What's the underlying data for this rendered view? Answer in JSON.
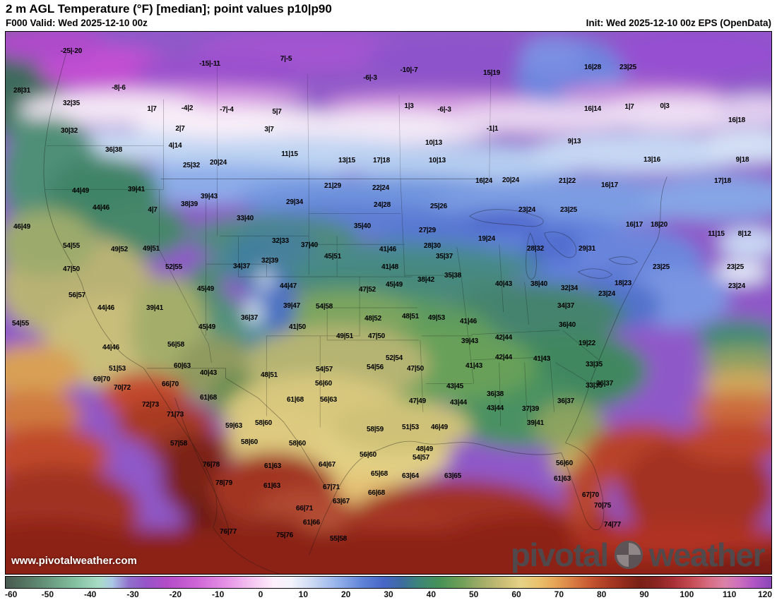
{
  "header": {
    "title": "2 m AGL Temperature (°F) [median]; point values p10|p90",
    "valid": "F000 Valid: Wed 2025-12-10 00z",
    "init": "Init: Wed 2025-12-10 00z EPS (OpenData)"
  },
  "watermark": {
    "url": "www.pivotalweather.com",
    "brand_first": "pivotal",
    "brand_second": "weather"
  },
  "colorbar": {
    "min": -60,
    "max": 120,
    "tick_labels": [
      -60,
      -50,
      -40,
      -30,
      -20,
      -10,
      0,
      10,
      20,
      30,
      40,
      50,
      60,
      70,
      80,
      90,
      100,
      110,
      120
    ],
    "stops": [
      [
        -60,
        "#47584e"
      ],
      [
        -52,
        "#5f8a72"
      ],
      [
        -44,
        "#82bf9e"
      ],
      [
        -38,
        "#a8dcc6"
      ],
      [
        -35,
        "#abc8e6"
      ],
      [
        -31,
        "#9170cc"
      ],
      [
        -27,
        "#9654c8"
      ],
      [
        -22,
        "#b44cc8"
      ],
      [
        -15,
        "#cf66d6"
      ],
      [
        -8,
        "#e693e6"
      ],
      [
        -2,
        "#f5c6f2"
      ],
      [
        3,
        "#fdeffb"
      ],
      [
        7,
        "#f3f3fb"
      ],
      [
        12,
        "#ccdaf4"
      ],
      [
        18,
        "#94b2ea"
      ],
      [
        24,
        "#5f82d8"
      ],
      [
        29,
        "#4766c6"
      ],
      [
        33,
        "#3d6ba0"
      ],
      [
        37,
        "#3d8579"
      ],
      [
        42,
        "#479258"
      ],
      [
        47,
        "#6f9f58"
      ],
      [
        52,
        "#a3ad68"
      ],
      [
        57,
        "#ccbe76"
      ],
      [
        61,
        "#e5d287"
      ],
      [
        65,
        "#e9c36e"
      ],
      [
        69,
        "#e5a657"
      ],
      [
        73,
        "#da8045"
      ],
      [
        77,
        "#c85a33"
      ],
      [
        81,
        "#af3f26"
      ],
      [
        85,
        "#952c1d"
      ],
      [
        89,
        "#7a2015"
      ],
      [
        93,
        "#8a2423"
      ],
      [
        97,
        "#a93136"
      ],
      [
        101,
        "#c44a52"
      ],
      [
        105,
        "#d66a7e"
      ],
      [
        109,
        "#db82a8"
      ],
      [
        112,
        "#cf72bc"
      ],
      [
        116,
        "#b055c4"
      ],
      [
        120,
        "#8a46b8"
      ]
    ]
  },
  "map": {
    "units": "°F",
    "point_format": "p10|p90",
    "point_values": [
      [
        100,
        74,
        "-25|-20"
      ],
      [
        296,
        92,
        "-15|-11"
      ],
      [
        404,
        85,
        "7|-5"
      ],
      [
        578,
        101,
        "-10|-7"
      ],
      [
        695,
        105,
        "15|19"
      ],
      [
        838,
        97,
        "16|28"
      ],
      [
        888,
        97,
        "23|25"
      ],
      [
        30,
        130,
        "28|31"
      ],
      [
        167,
        126,
        "-8|-6"
      ],
      [
        523,
        112,
        "-6|-3"
      ],
      [
        100,
        148,
        "32|35"
      ],
      [
        214,
        156,
        "1|7"
      ],
      [
        264,
        155,
        "-4|2"
      ],
      [
        320,
        157,
        "-7|-4"
      ],
      [
        391,
        160,
        "5|7"
      ],
      [
        578,
        152,
        "1|3"
      ],
      [
        628,
        157,
        "-6|-3"
      ],
      [
        838,
        156,
        "16|14"
      ],
      [
        890,
        153,
        "1|7"
      ],
      [
        940,
        152,
        "0|3"
      ],
      [
        97,
        187,
        "30|32"
      ],
      [
        254,
        184,
        "2|7"
      ],
      [
        380,
        185,
        "3|7"
      ],
      [
        696,
        184,
        "-1|1"
      ],
      [
        1042,
        172,
        "16|18"
      ],
      [
        160,
        214,
        "36|38"
      ],
      [
        247,
        208,
        "4|14"
      ],
      [
        409,
        220,
        "11|15"
      ],
      [
        613,
        204,
        "10|13"
      ],
      [
        812,
        202,
        "9|13"
      ],
      [
        490,
        229,
        "13|15"
      ],
      [
        539,
        229,
        "17|18"
      ],
      [
        618,
        229,
        "10|13"
      ],
      [
        922,
        228,
        "13|16"
      ],
      [
        1050,
        228,
        "9|18"
      ],
      [
        270,
        236,
        "25|32"
      ],
      [
        308,
        232,
        "20|24"
      ],
      [
        113,
        272,
        "44|49"
      ],
      [
        192,
        270,
        "39|41"
      ],
      [
        295,
        280,
        "39|43"
      ],
      [
        267,
        291,
        "38|39"
      ],
      [
        470,
        265,
        "21|29"
      ],
      [
        538,
        268,
        "22|24"
      ],
      [
        684,
        258,
        "16|24"
      ],
      [
        722,
        257,
        "20|24"
      ],
      [
        802,
        258,
        "21|22"
      ],
      [
        862,
        264,
        "16|17"
      ],
      [
        1022,
        258,
        "17|18"
      ],
      [
        142,
        296,
        "44|46"
      ],
      [
        215,
        299,
        "4|7"
      ],
      [
        346,
        311,
        "33|40"
      ],
      [
        416,
        288,
        "29|34"
      ],
      [
        540,
        292,
        "24|28"
      ],
      [
        620,
        294,
        "25|26"
      ],
      [
        745,
        299,
        "23|24"
      ],
      [
        804,
        299,
        "23|25"
      ],
      [
        30,
        323,
        "46|49"
      ],
      [
        512,
        322,
        "35|40"
      ],
      [
        604,
        328,
        "27|29"
      ],
      [
        688,
        340,
        "19|24"
      ],
      [
        897,
        320,
        "16|17"
      ],
      [
        932,
        320,
        "18|20"
      ],
      [
        1013,
        333,
        "11|15"
      ],
      [
        1053,
        333,
        "8|12"
      ],
      [
        100,
        350,
        "54|55"
      ],
      [
        168,
        355,
        "49|52"
      ],
      [
        213,
        354,
        "49|51"
      ],
      [
        396,
        343,
        "32|33"
      ],
      [
        437,
        349,
        "37|40"
      ],
      [
        548,
        355,
        "41|46"
      ],
      [
        611,
        350,
        "28|30"
      ],
      [
        757,
        354,
        "28|32"
      ],
      [
        830,
        354,
        "29|31"
      ],
      [
        935,
        380,
        "23|25"
      ],
      [
        100,
        383,
        "47|50"
      ],
      [
        245,
        380,
        "52|55"
      ],
      [
        341,
        379,
        "34|37"
      ],
      [
        381,
        371,
        "32|39"
      ],
      [
        470,
        365,
        "45|51"
      ],
      [
        551,
        380,
        "41|48"
      ],
      [
        628,
        365,
        "35|37"
      ],
      [
        1040,
        380,
        "23|25"
      ],
      [
        1042,
        407,
        "23|24"
      ],
      [
        108,
        420,
        "56|57"
      ],
      [
        149,
        438,
        "44|46"
      ],
      [
        218,
        438,
        "39|41"
      ],
      [
        290,
        411,
        "45|49"
      ],
      [
        407,
        407,
        "44|47"
      ],
      [
        412,
        435,
        "39|47"
      ],
      [
        458,
        436,
        "54|58"
      ],
      [
        519,
        412,
        "47|52"
      ],
      [
        557,
        405,
        "45|49"
      ],
      [
        602,
        398,
        "38|42"
      ],
      [
        640,
        392,
        "35|38"
      ],
      [
        712,
        404,
        "40|43"
      ],
      [
        762,
        404,
        "38|40"
      ],
      [
        805,
        410,
        "32|34"
      ],
      [
        800,
        435,
        "34|37"
      ],
      [
        858,
        418,
        "23|24"
      ],
      [
        881,
        403,
        "18|23"
      ],
      [
        28,
        460,
        "54|55"
      ],
      [
        156,
        494,
        "44|46"
      ],
      [
        248,
        490,
        "56|58"
      ],
      [
        292,
        465,
        "45|49"
      ],
      [
        352,
        452,
        "36|37"
      ],
      [
        420,
        465,
        "41|50"
      ],
      [
        487,
        478,
        "49|51"
      ],
      [
        532,
        478,
        "47|50"
      ],
      [
        527,
        453,
        "48|52"
      ],
      [
        580,
        450,
        "48|51"
      ],
      [
        617,
        452,
        "49|53"
      ],
      [
        662,
        457,
        "41|46"
      ],
      [
        664,
        485,
        "39|43"
      ],
      [
        712,
        480,
        "42|44"
      ],
      [
        766,
        510,
        "41|43"
      ],
      [
        802,
        462,
        "36|40"
      ],
      [
        830,
        488,
        "19|22"
      ],
      [
        840,
        518,
        "33|35"
      ],
      [
        165,
        524,
        "51|53"
      ],
      [
        143,
        539,
        "69|70"
      ],
      [
        172,
        551,
        "70|72"
      ],
      [
        240,
        546,
        "66|70"
      ],
      [
        257,
        520,
        "60|63"
      ],
      [
        294,
        530,
        "40|43"
      ],
      [
        380,
        533,
        "48|51"
      ],
      [
        458,
        525,
        "54|57"
      ],
      [
        530,
        522,
        "54|56"
      ],
      [
        557,
        509,
        "52|54"
      ],
      [
        587,
        524,
        "47|50"
      ],
      [
        670,
        520,
        "41|43"
      ],
      [
        712,
        508,
        "42|44"
      ],
      [
        855,
        545,
        "36|37"
      ],
      [
        212,
        575,
        "72|73"
      ],
      [
        247,
        589,
        "71|73"
      ],
      [
        294,
        565,
        "61|68"
      ],
      [
        330,
        605,
        "59|63"
      ],
      [
        372,
        601,
        "58|60"
      ],
      [
        417,
        568,
        "61|68"
      ],
      [
        464,
        568,
        "56|63"
      ],
      [
        457,
        545,
        "56|60"
      ],
      [
        530,
        610,
        "58|59"
      ],
      [
        580,
        607,
        "51|53"
      ],
      [
        621,
        607,
        "46|49"
      ],
      [
        590,
        570,
        "47|49"
      ],
      [
        643,
        549,
        "43|45"
      ],
      [
        648,
        572,
        "43|44"
      ],
      [
        700,
        580,
        "43|44"
      ],
      [
        750,
        581,
        "37|39"
      ],
      [
        757,
        601,
        "39|41"
      ],
      [
        800,
        570,
        "36|37"
      ],
      [
        700,
        560,
        "36|38"
      ],
      [
        840,
        548,
        "33|35"
      ],
      [
        252,
        630,
        "57|58"
      ],
      [
        352,
        628,
        "58|60"
      ],
      [
        420,
        630,
        "58|60"
      ],
      [
        385,
        662,
        "61|63"
      ],
      [
        462,
        660,
        "64|67"
      ],
      [
        520,
        646,
        "56|60"
      ],
      [
        536,
        673,
        "65|68"
      ],
      [
        600,
        638,
        "48|49"
      ],
      [
        595,
        650,
        "54|57"
      ],
      [
        580,
        676,
        "63|64"
      ],
      [
        640,
        676,
        "63|65"
      ],
      [
        798,
        658,
        "56|60"
      ],
      [
        795,
        680,
        "61|63"
      ],
      [
        835,
        703,
        "67|70"
      ],
      [
        852,
        718,
        "70|75"
      ],
      [
        866,
        745,
        "74|77"
      ],
      [
        298,
        660,
        "76|78"
      ],
      [
        316,
        686,
        "78|79"
      ],
      [
        384,
        690,
        "61|63"
      ],
      [
        468,
        692,
        "67|71"
      ],
      [
        482,
        712,
        "63|67"
      ],
      [
        532,
        700,
        "66|68"
      ],
      [
        430,
        722,
        "66|71"
      ],
      [
        440,
        742,
        "61|66"
      ],
      [
        478,
        765,
        "55|58"
      ],
      [
        402,
        760,
        "75|76"
      ],
      [
        322,
        755,
        "76|77"
      ]
    ]
  }
}
